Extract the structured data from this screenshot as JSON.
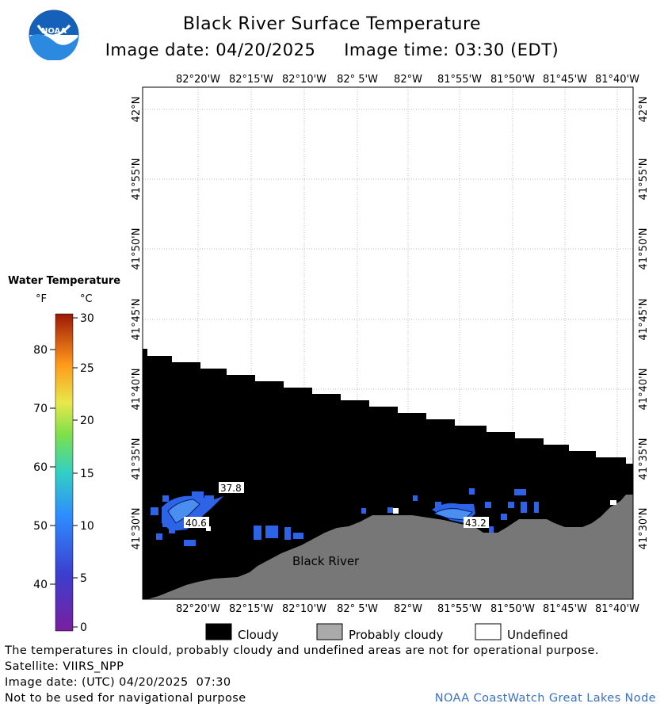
{
  "header": {
    "title": "Black River Surface Temperature",
    "image_date_label": "Image date:",
    "image_date": "04/20/2025",
    "image_time_label": "Image time:",
    "image_time": "03:30 (EDT)"
  },
  "logo": {
    "text": "NOAA"
  },
  "map": {
    "lon_labels": [
      "82°20'W",
      "82°15'W",
      "82°10'W",
      "82° 5'W",
      "82°W",
      "81°55'W",
      "81°50'W",
      "81°45'W",
      "81°40'W"
    ],
    "lat_labels": [
      "42°N",
      "41°55'N",
      "41°50'N",
      "41°45'N",
      "41°40'N",
      "41°35'N",
      "41°30'N"
    ],
    "place_label": "Black River",
    "temperature_labels": [
      "37.8",
      "40.6",
      "43.2"
    ],
    "colors": {
      "cloudy": "#000000",
      "probably_cloudy": "#777777",
      "water_cold": "#2d63e6",
      "water_light": "#4a8ff0",
      "grid": "#bbbbbb"
    }
  },
  "colorbar": {
    "title": "Water Temperature",
    "unit_f": "°F",
    "unit_c": "°C",
    "f_ticks": [
      "80",
      "70",
      "60",
      "50",
      "40"
    ],
    "c_ticks": [
      "30",
      "25",
      "20",
      "15",
      "10",
      "5",
      "0"
    ]
  },
  "legend": {
    "cloudy": "Cloudy",
    "probably_cloudy": "Probably cloudy",
    "undefined": "Undefined"
  },
  "footer": {
    "disclaimer": "The temperatures in clould, probably cloudy and undefined areas are not for operational purpose.",
    "satellite": "Satellite: VIIRS_NPP",
    "image_date_utc": "Image date: (UTC) 04/20/2025  07:30",
    "navigation_note": "Not to be used for navigational purpose",
    "credit": "NOAA CoastWatch Great Lakes Node"
  }
}
